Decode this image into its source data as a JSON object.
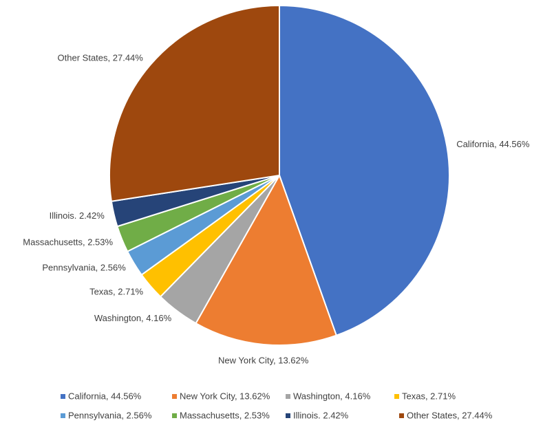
{
  "chart_data": {
    "type": "pie",
    "categories": [
      "California, 44.56%",
      "New York City, 13.62%",
      "Washington, 4.16%",
      "Texas, 2.71%",
      "Pennsylvania, 2.56%",
      "Massachusetts, 2.53%",
      "Illinois. 2.42%",
      "Other States, 27.44%"
    ],
    "values": [
      44.56,
      13.62,
      4.16,
      2.71,
      2.56,
      2.53,
      2.42,
      27.44
    ],
    "colors": [
      "#4472c4",
      "#ed7d31",
      "#a5a5a5",
      "#ffc000",
      "#5b9bd5",
      "#70ad47",
      "#264478",
      "#9e480e"
    ],
    "legend": "bottom"
  }
}
